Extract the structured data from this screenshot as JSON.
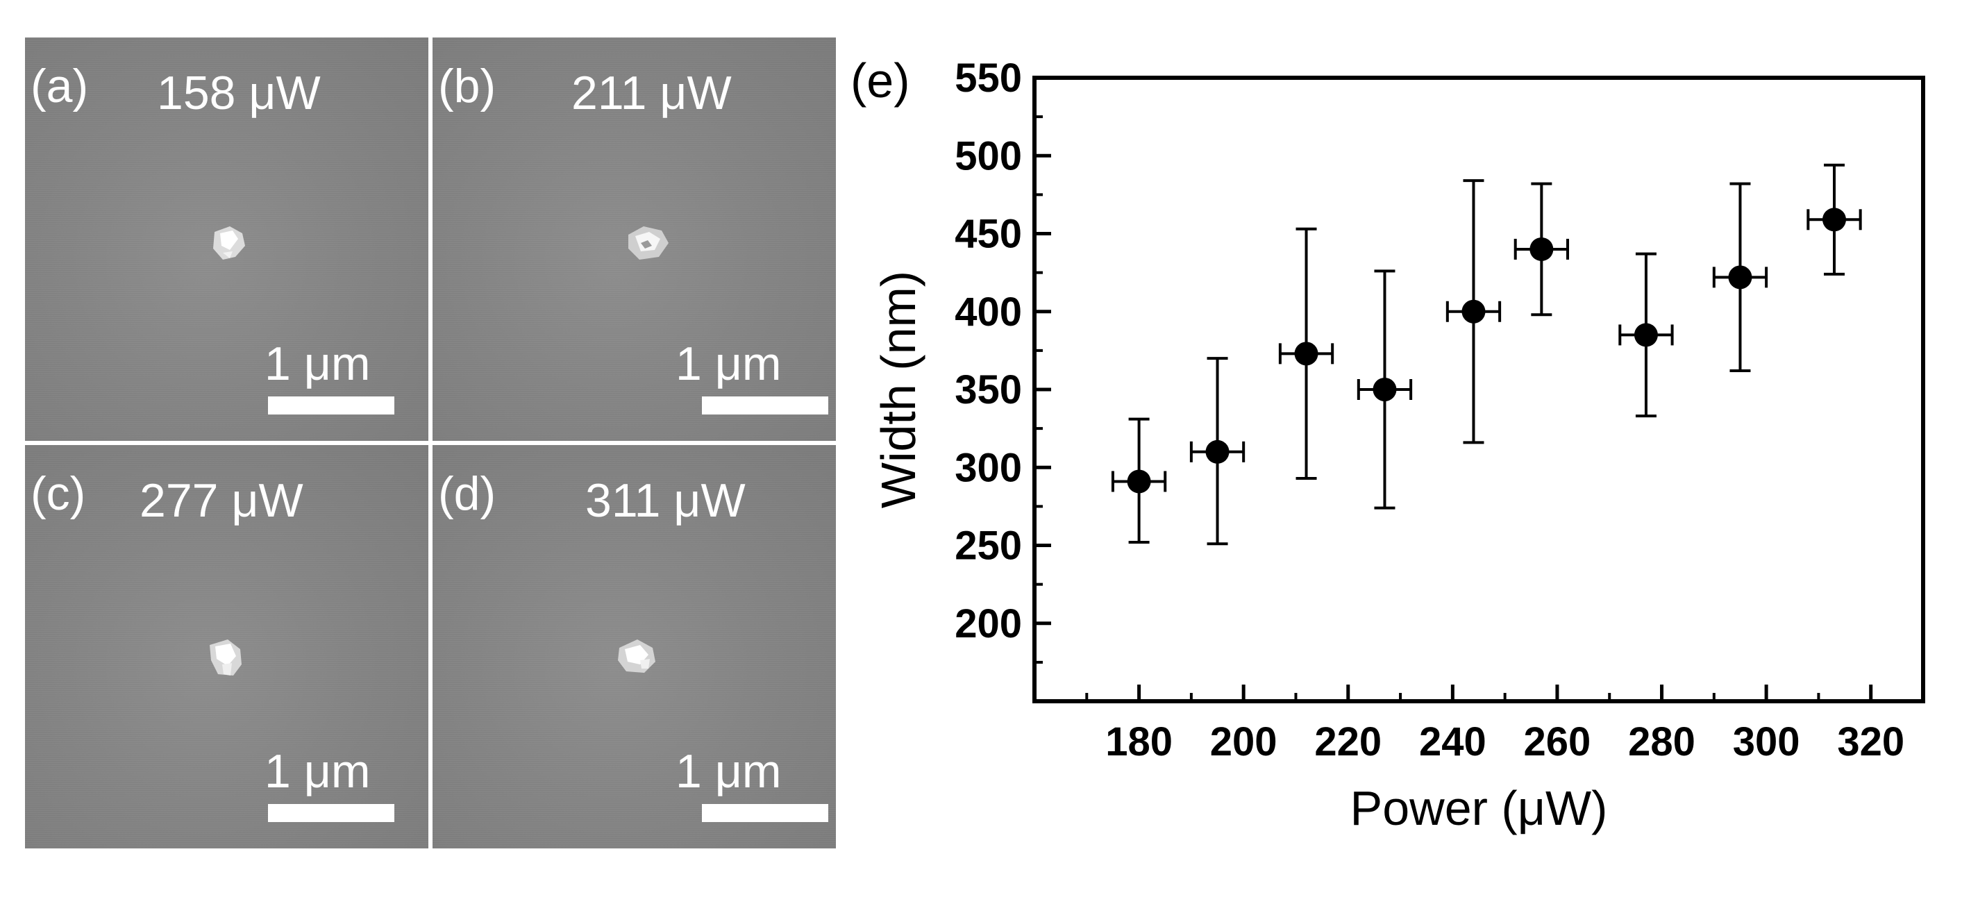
{
  "panels": [
    {
      "id": "a",
      "letter": "(a)",
      "power": "158 μW",
      "scale": "1 μm"
    },
    {
      "id": "b",
      "letter": "(b)",
      "power": "211 μW",
      "scale": "1 μm"
    },
    {
      "id": "c",
      "letter": "(c)",
      "power": "277 μW",
      "scale": "1 μm"
    },
    {
      "id": "d",
      "letter": "(d)",
      "power": "311 μW",
      "scale": "1 μm"
    }
  ],
  "chart_data": {
    "type": "scatter",
    "panel_label": "(e)",
    "title": "",
    "xlabel": "Power (μW)",
    "ylabel": "Width (nm)",
    "xlim": [
      160,
      330
    ],
    "ylim": [
      150,
      550
    ],
    "xticks": [
      180,
      200,
      220,
      240,
      260,
      280,
      300,
      320
    ],
    "yticks": [
      200,
      250,
      300,
      350,
      400,
      450,
      500,
      550
    ],
    "grid": false,
    "points": [
      {
        "x": 180,
        "y": 291,
        "x_err": 5,
        "y_low": 252,
        "y_high": 331
      },
      {
        "x": 195,
        "y": 310,
        "x_err": 5,
        "y_low": 251,
        "y_high": 370
      },
      {
        "x": 212,
        "y": 373,
        "x_err": 5,
        "y_low": 293,
        "y_high": 453
      },
      {
        "x": 227,
        "y": 350,
        "x_err": 5,
        "y_low": 274,
        "y_high": 426
      },
      {
        "x": 244,
        "y": 400,
        "x_err": 5,
        "y_low": 316,
        "y_high": 484
      },
      {
        "x": 257,
        "y": 440,
        "x_err": 5,
        "y_low": 398,
        "y_high": 482
      },
      {
        "x": 277,
        "y": 385,
        "x_err": 5,
        "y_low": 333,
        "y_high": 437
      },
      {
        "x": 295,
        "y": 422,
        "x_err": 5,
        "y_low": 362,
        "y_high": 482
      },
      {
        "x": 313,
        "y": 459,
        "x_err": 5,
        "y_low": 424,
        "y_high": 494
      }
    ]
  }
}
